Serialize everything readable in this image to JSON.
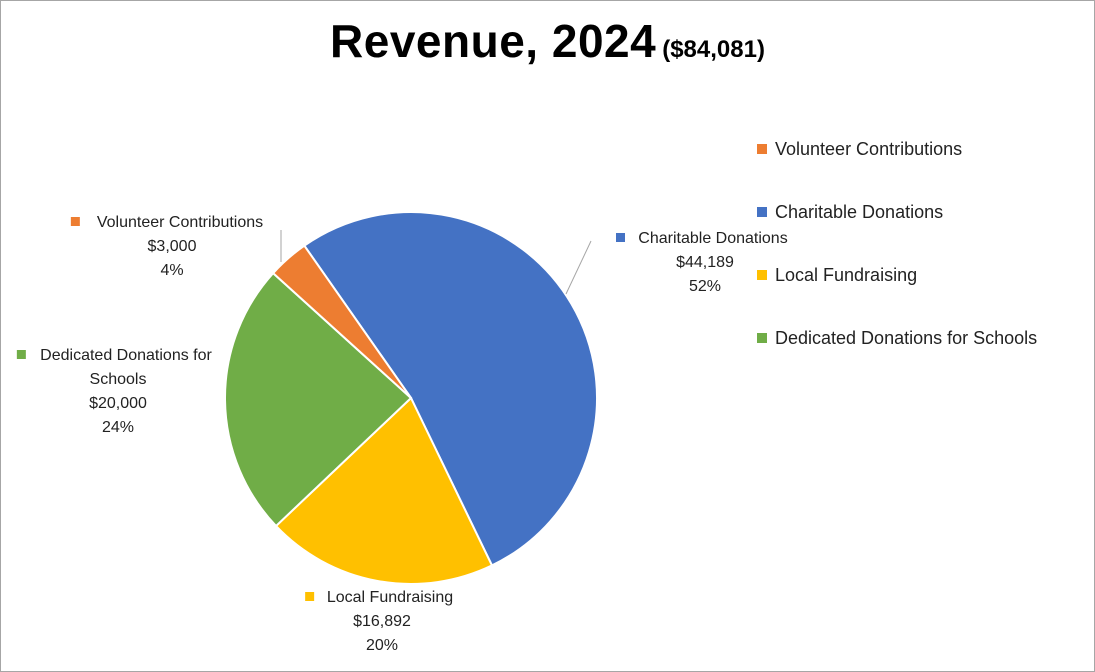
{
  "title": "Revenue, 2024",
  "subtitle": "($84,081)",
  "chart_data": {
    "type": "pie",
    "title": "Revenue, 2024",
    "subtitle": "($84,081)",
    "total": 84081,
    "legend_position": "right",
    "slices": [
      {
        "name": "Charitable Donations",
        "value": 44189,
        "value_label": "$44,189",
        "percent_label": "52%",
        "color": "#4472c4"
      },
      {
        "name": "Local Fundraising",
        "value": 16892,
        "value_label": "$16,892",
        "percent_label": "20%",
        "color": "#ffc000"
      },
      {
        "name": "Dedicated Donations for Schools",
        "value": 20000,
        "value_label": "$20,000",
        "percent_label": "24%",
        "color": "#70ad47"
      },
      {
        "name": "Volunteer Contributions",
        "value": 3000,
        "value_label": "$3,000",
        "percent_label": "4%",
        "color": "#ed7d31"
      }
    ],
    "legend": [
      {
        "name": "Volunteer Contributions",
        "color": "#ed7d31"
      },
      {
        "name": "Charitable Donations",
        "color": "#4472c4"
      },
      {
        "name": "Local Fundraising",
        "color": "#ffc000"
      },
      {
        "name": "Dedicated Donations for Schools",
        "color": "#70ad47"
      }
    ]
  }
}
